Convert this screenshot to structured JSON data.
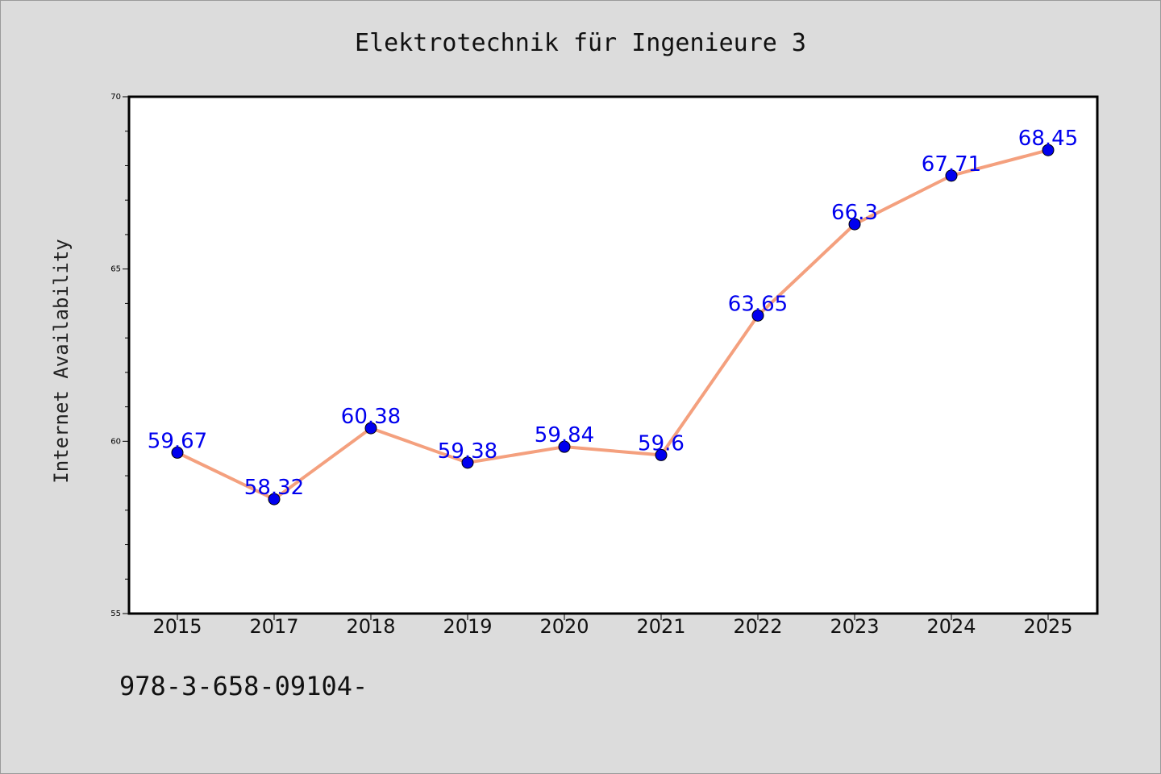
{
  "chart_data": {
    "type": "line",
    "title": "Elektrotechnik für Ingenieure 3",
    "xlabel": "",
    "ylabel": "Internet Availability",
    "categories": [
      "2015",
      "2017",
      "2018",
      "2019",
      "2020",
      "2021",
      "2022",
      "2023",
      "2024",
      "2025"
    ],
    "series": [
      {
        "values": [
          59.67,
          58.32,
          60.38,
          59.38,
          59.84,
          59.6,
          63.65,
          66.3,
          67.71,
          68.45
        ],
        "labels": [
          "59.67",
          "58.32",
          "60.38",
          "59.38",
          "59.84",
          "59.6",
          "63.65",
          "66.3",
          "67.71",
          "68.45"
        ],
        "line_color": "#f4a07e",
        "marker_color": "#0000ee"
      }
    ],
    "ylim": [
      55,
      70
    ],
    "yticks": [
      "55",
      "60",
      "65",
      "70"
    ],
    "grid": false,
    "legend": "none"
  },
  "footer": {
    "isbn": "978-3-658-09104-"
  }
}
